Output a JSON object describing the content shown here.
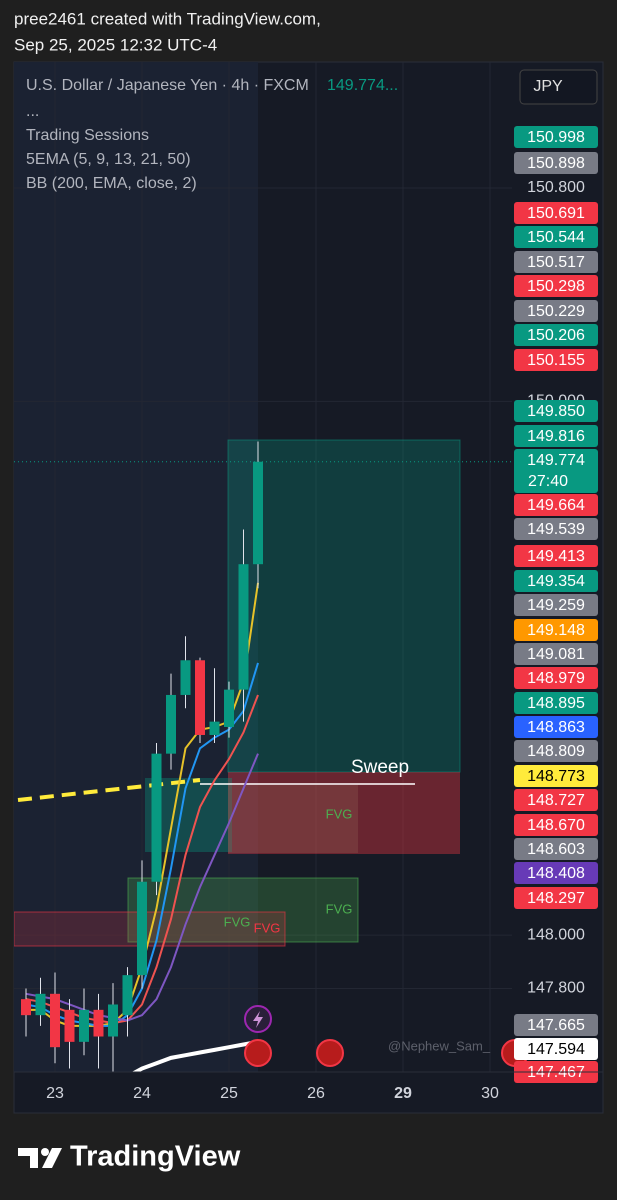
{
  "header": {
    "line1": "pree2461 created with TradingView.com,",
    "line2": "Sep 25, 2025 12:32 UTC-4"
  },
  "chart_data": {
    "type": "candlestick",
    "title": "U.S. Dollar / Japanese Yen · 4h · FXCM",
    "legend_price": "149.774...",
    "indicators": [
      "...",
      "Trading Sessions",
      "5EMA (5, 9, 13, 21, 50)",
      "BB (200, EMA, close, 2)"
    ],
    "currency": "JPY",
    "categories": [
      null,
      null,
      "23",
      null,
      null,
      null,
      null,
      null,
      "24",
      null,
      null,
      null,
      null,
      null,
      "25",
      null,
      null,
      null,
      null,
      null,
      "26",
      null,
      null,
      null,
      null,
      null,
      "29",
      null,
      null,
      null,
      null,
      null,
      "30",
      null
    ],
    "open": [
      147.76,
      147.7,
      147.78,
      147.72,
      147.6,
      147.72,
      147.62,
      147.7,
      147.85,
      148.2,
      148.68,
      148.9,
      149.03,
      148.75,
      148.78,
      148.92,
      149.39,
      null,
      null,
      null,
      null,
      null,
      null,
      null,
      null,
      null,
      null,
      null,
      null,
      null,
      null,
      null,
      null,
      null
    ],
    "high": [
      147.8,
      147.84,
      147.86,
      147.76,
      147.8,
      147.78,
      147.82,
      147.88,
      148.28,
      148.72,
      148.98,
      149.12,
      149.04,
      149.0,
      148.95,
      149.52,
      149.85,
      null,
      null,
      null,
      null,
      null,
      null,
      null,
      null,
      null,
      null,
      null,
      null,
      null,
      null,
      null,
      null,
      null
    ],
    "low": [
      147.62,
      147.66,
      147.52,
      147.5,
      147.55,
      147.5,
      147.48,
      147.62,
      147.8,
      148.15,
      148.62,
      148.85,
      148.72,
      148.72,
      148.74,
      148.8,
      149.3,
      null,
      null,
      null,
      null,
      null,
      null,
      null,
      null,
      null,
      null,
      null,
      null,
      null,
      null,
      null,
      null,
      null
    ],
    "close": [
      147.7,
      147.78,
      147.58,
      147.6,
      147.72,
      147.62,
      147.74,
      147.85,
      148.2,
      148.68,
      148.9,
      149.03,
      148.75,
      148.8,
      148.92,
      149.39,
      149.774,
      null,
      null,
      null,
      null,
      null,
      null,
      null,
      null,
      null,
      null,
      null,
      null,
      null,
      null,
      null,
      null,
      null
    ],
    "up_color": "#089981",
    "down_color": "#f23645",
    "overlays": [
      {
        "color": "#e6c229",
        "values": [
          147.72,
          147.72,
          147.68,
          147.66,
          147.66,
          147.66,
          147.67,
          147.72,
          147.88,
          148.1,
          148.4,
          148.7,
          148.77,
          148.78,
          148.8,
          148.95,
          149.32,
          null,
          null,
          null,
          null,
          null,
          null,
          null,
          null,
          null,
          null,
          null,
          null,
          null,
          null,
          null,
          null,
          null
        ]
      },
      {
        "color": "#2196f3",
        "values": [
          147.74,
          147.73,
          147.7,
          147.68,
          147.67,
          147.66,
          147.66,
          147.7,
          147.8,
          147.98,
          148.25,
          148.55,
          148.7,
          148.74,
          148.77,
          148.84,
          149.02,
          null,
          null,
          null,
          null,
          null,
          null,
          null,
          null,
          null,
          null,
          null,
          null,
          null,
          null,
          null,
          null,
          null
        ]
      },
      {
        "color": "#ef5350",
        "values": [
          147.76,
          147.75,
          147.73,
          147.71,
          147.69,
          147.68,
          147.67,
          147.68,
          147.74,
          147.88,
          148.06,
          148.3,
          148.48,
          148.58,
          148.66,
          148.76,
          148.9,
          null,
          null,
          null,
          null,
          null,
          null,
          null,
          null,
          null,
          null,
          null,
          null,
          null,
          null,
          null,
          null,
          null
        ]
      },
      {
        "color": "#7e57c2",
        "values": [
          147.78,
          147.77,
          147.76,
          147.74,
          147.72,
          147.7,
          147.69,
          147.68,
          147.7,
          147.76,
          147.88,
          148.04,
          148.18,
          148.3,
          148.42,
          148.55,
          148.68,
          null,
          null,
          null,
          null,
          null,
          null,
          null,
          null,
          null,
          null,
          null,
          null,
          null,
          null,
          null,
          null,
          null
        ]
      },
      {
        "color": "#ffffff",
        "values": [
          null,
          null,
          null,
          null,
          null,
          null,
          null,
          147.47,
          147.5,
          147.52,
          147.54,
          147.55,
          147.56,
          147.57,
          147.58,
          147.59,
          147.6,
          null,
          null,
          null,
          null,
          null,
          null,
          null,
          null,
          null,
          null,
          null,
          null,
          null,
          null,
          null,
          null,
          null
        ]
      }
    ],
    "ylim": [
      147.487,
      151.272
    ],
    "yticks": [
      {
        "value": 150.8,
        "label": "150.800"
      },
      {
        "value": 150,
        "label": "150.000"
      },
      {
        "value": 148,
        "label": "148.000"
      },
      {
        "value": 147.8,
        "label": "147.800"
      }
    ],
    "price_tags": [
      {
        "value": 150.998,
        "color": "#089981"
      },
      {
        "value": 150.898,
        "color": "#787b86"
      },
      {
        "value": 150.691,
        "color": "#f23645"
      },
      {
        "value": 150.544,
        "color": "#089981"
      },
      {
        "value": 150.517,
        "color": "#787b86"
      },
      {
        "value": 150.298,
        "color": "#f23645"
      },
      {
        "value": 150.229,
        "color": "#787b86"
      },
      {
        "value": 150.206,
        "color": "#089981"
      },
      {
        "value": 150.155,
        "color": "#f23645"
      },
      {
        "value": 149.85,
        "label": "149.850",
        "color": "#089981"
      },
      {
        "value": 149.816,
        "color": "#089981"
      },
      {
        "value": 149.774,
        "color": "#089981"
      },
      {
        "value": 149.664,
        "color": "#f23645"
      },
      {
        "value": 149.539,
        "color": "#787b86"
      },
      {
        "value": 149.413,
        "color": "#f23645"
      },
      {
        "value": 149.354,
        "color": "#089981"
      },
      {
        "value": 149.259,
        "color": "#787b86"
      },
      {
        "value": 149.148,
        "color": "#ff9800"
      },
      {
        "value": 149.081,
        "color": "#787b86"
      },
      {
        "value": 148.979,
        "color": "#f23645"
      },
      {
        "value": 148.895,
        "color": "#089981"
      },
      {
        "value": 148.863,
        "color": "#2962ff"
      },
      {
        "value": 148.809,
        "color": "#787b86"
      },
      {
        "value": 148.773,
        "color": "#ffeb3b"
      },
      {
        "value": 148.727,
        "color": "#f23645"
      },
      {
        "value": 148.67,
        "label": "148.670",
        "color": "#f23645"
      },
      {
        "value": 148.603,
        "color": "#787b86"
      },
      {
        "value": 148.408,
        "color": "#673ab7"
      },
      {
        "value": 148.297,
        "color": "#f23645"
      },
      {
        "value": 147.665,
        "color": "#787b86"
      },
      {
        "value": 147.594,
        "color": "#ffffff"
      },
      {
        "value": 147.467,
        "color": "#f23645"
      }
    ],
    "countdown": "27:40",
    "annotations": {
      "sweep": "Sweep",
      "fvg": [
        "FVG",
        "FVG",
        "FVG",
        "FVG"
      ],
      "watermark": "@Nephew_Sam_"
    }
  },
  "footer": {
    "brand": "TradingView"
  }
}
